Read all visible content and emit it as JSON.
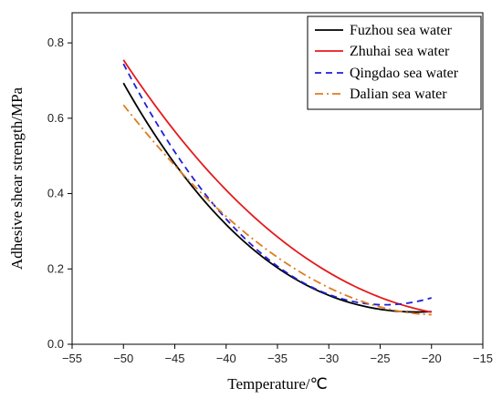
{
  "chart_data": {
    "type": "line",
    "xlabel": "Temperature/℃",
    "ylabel": "Adhesive shear strength/MPa",
    "xlim": [
      -55,
      -15
    ],
    "ylim": [
      0,
      0.88
    ],
    "xticks": [
      -55,
      -50,
      -45,
      -40,
      -35,
      -30,
      -25,
      -20,
      -15
    ],
    "yticks": [
      0.0,
      0.2,
      0.4,
      0.6,
      0.8
    ],
    "xtick_labels": [
      "−55",
      "−50",
      "−45",
      "−40",
      "−35",
      "−30",
      "−25",
      "−20",
      "−15"
    ],
    "ytick_labels": [
      "0.0",
      "0.2",
      "0.4",
      "0.6",
      "0.8"
    ],
    "legend_position": "top-right",
    "grid": false,
    "series": [
      {
        "name": "Fuzhou sea water",
        "color": "#000000",
        "dash": "solid",
        "x": [
          -50,
          -45,
          -40,
          -35,
          -30,
          -25,
          -20
        ],
        "y": [
          0.695,
          0.475,
          0.32,
          0.205,
          0.13,
          0.09,
          0.088
        ]
      },
      {
        "name": "Zhuhai sea water",
        "color": "#e41a1c",
        "dash": "solid",
        "x": [
          -50,
          -45,
          -40,
          -35,
          -30,
          -25,
          -20
        ],
        "y": [
          0.755,
          0.565,
          0.41,
          0.285,
          0.19,
          0.125,
          0.085
        ]
      },
      {
        "name": "Qingdao sea water",
        "color": "#1f1fd8",
        "dash": "dash",
        "x": [
          -50,
          -45,
          -40,
          -35,
          -30,
          -25,
          -20
        ],
        "y": [
          0.745,
          0.51,
          0.33,
          0.21,
          0.135,
          0.1,
          0.125
        ]
      },
      {
        "name": "Dalian sea water",
        "color": "#e07b20",
        "dash": "dashdot",
        "x": [
          -50,
          -45,
          -40,
          -35,
          -30,
          -25,
          -20
        ],
        "y": [
          0.635,
          0.475,
          0.34,
          0.23,
          0.15,
          0.1,
          0.078
        ]
      }
    ]
  }
}
